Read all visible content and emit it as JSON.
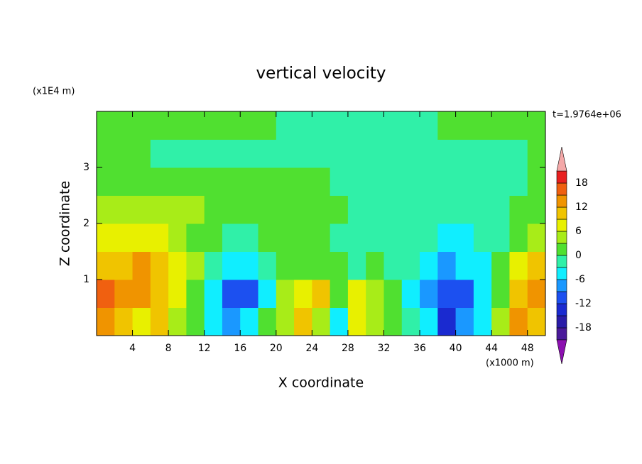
{
  "chart_data": {
    "type": "contour",
    "title": "vertical velocity",
    "x_label": "X coordinate",
    "y_label": "Z coordinate",
    "x_units": "(x1000 m)",
    "y_units": "(x1E4 m)",
    "time_label": "t=1.9764e+06",
    "x": [
      1,
      3,
      5,
      7,
      9,
      11,
      13,
      15,
      17,
      19,
      21,
      23,
      25,
      27,
      29,
      31,
      33,
      35,
      37,
      39,
      41,
      43,
      45,
      47,
      49
    ],
    "y": [
      0.25,
      0.75,
      1.25,
      1.75,
      2.25,
      2.75,
      3.25,
      3.75
    ],
    "z": [
      [
        13,
        10,
        7,
        10,
        4,
        1,
        -4,
        -7,
        -4,
        1,
        4,
        10,
        4,
        -4,
        7,
        4,
        1,
        -1,
        -4,
        -13,
        -7,
        -4,
        4,
        13,
        10
      ],
      [
        16,
        13,
        13,
        10,
        7,
        1,
        -4,
        -10,
        -10,
        -4,
        4,
        7,
        10,
        1,
        7,
        4,
        1,
        -4,
        -7,
        -10,
        -10,
        -4,
        1,
        10,
        13
      ],
      [
        10,
        10,
        13,
        10,
        7,
        4,
        -1,
        -4,
        -4,
        -1,
        1,
        1,
        1,
        1,
        -1,
        1,
        -1,
        -1,
        -4,
        -7,
        -4,
        -4,
        1,
        7,
        10
      ],
      [
        7,
        7,
        7,
        7,
        4,
        1,
        1,
        -1,
        -1,
        1,
        1,
        1,
        1,
        -1,
        -1,
        -1,
        -1,
        -1,
        -1,
        -4,
        -4,
        -1,
        -1,
        1,
        4
      ],
      [
        4,
        4,
        4,
        4,
        4,
        4,
        1,
        1,
        1,
        1,
        1,
        1,
        1,
        1,
        -1,
        -1,
        -1,
        -1,
        -1,
        -1,
        -1,
        -1,
        -1,
        1,
        1
      ],
      [
        1,
        1,
        1,
        1,
        1,
        1,
        1,
        1,
        1,
        1,
        1,
        1,
        1,
        -1,
        -1,
        -1,
        -1,
        -1,
        -1,
        -1,
        -1,
        -1,
        -1,
        -1,
        1
      ],
      [
        1,
        1,
        1,
        -1,
        -1,
        -1,
        -1,
        -1,
        -1,
        -1,
        -1,
        -1,
        -1,
        -1,
        -1,
        -1,
        -1,
        -1,
        -1,
        -1,
        -1,
        -1,
        -1,
        -1,
        1
      ],
      [
        1,
        1,
        1,
        1,
        1,
        1,
        1,
        1,
        1,
        1,
        -1,
        -1,
        -1,
        -1,
        -1,
        -1,
        -1,
        -1,
        -1,
        1,
        1,
        1,
        1,
        1,
        1
      ]
    ],
    "xlim": [
      0,
      50
    ],
    "ylim": [
      0,
      4
    ],
    "xticks": [
      4,
      8,
      12,
      16,
      20,
      24,
      28,
      32,
      36,
      40,
      44,
      48
    ],
    "yticks": [
      1,
      2,
      3
    ],
    "levels": [
      -21,
      -18,
      -15,
      -12,
      -9,
      -6,
      -3,
      0,
      3,
      6,
      9,
      12,
      15,
      18,
      21
    ],
    "colors": [
      "#8c10b0",
      "#4a1a9a",
      "#2a1ca8",
      "#1a2ad0",
      "#1c50f0",
      "#1a98ff",
      "#10eeff",
      "#30f0a8",
      "#50e030",
      "#a8ec18",
      "#e8f000",
      "#f0c400",
      "#f09400",
      "#f06010",
      "#e82020",
      "#f4a8a8"
    ],
    "colorbar_ticks": [
      -18,
      -12,
      -6,
      0,
      6,
      12,
      18
    ]
  }
}
